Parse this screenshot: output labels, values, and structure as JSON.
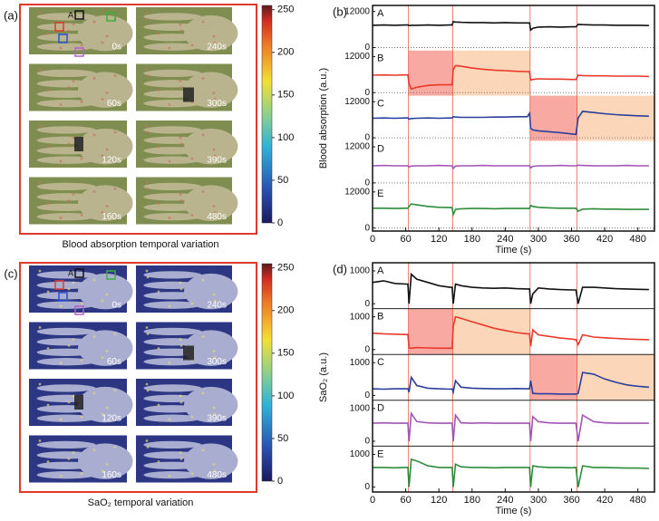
{
  "panels": [
    {
      "label": "(a)",
      "tiles": [
        "0s",
        "240s",
        "60s",
        "300s",
        "120s",
        "390s",
        "160s",
        "480s"
      ],
      "roi_label": "A",
      "caption": "Blood absorption temporal variation",
      "colorbar": {
        "lim": [
          0,
          255
        ],
        "ticks": [
          0,
          50,
          100,
          150,
          200,
          250
        ]
      }
    },
    {
      "label": "(c)",
      "tiles": [
        "0s",
        "240s",
        "60s",
        "300s",
        "120s",
        "390s",
        "160s",
        "480s"
      ],
      "roi_label": "A",
      "caption": "SaO₂ temporal variation",
      "colorbar": {
        "lim": [
          0,
          255
        ],
        "ticks": [
          0,
          50,
          100,
          150,
          200,
          250
        ]
      }
    }
  ],
  "chart_data": [
    {
      "type": "line",
      "panel_label": "(b)",
      "ylabel": "Blood absorption (a.u.)",
      "xlabel": "Time (s)",
      "xlim": [
        0,
        510
      ],
      "xticks": [
        0,
        60,
        120,
        180,
        240,
        300,
        360,
        420,
        480
      ],
      "ylim": [
        -1000,
        14000
      ],
      "yticks": [
        0,
        12000
      ],
      "zero_line": true,
      "row_dividers": false,
      "events": [
        65,
        145,
        285,
        370
      ],
      "shades": [
        {
          "series": 1,
          "from": 65,
          "to": 145,
          "color": "#f8aaa2"
        },
        {
          "series": 1,
          "from": 145,
          "to": 285,
          "color": "#fcd6b8"
        },
        {
          "series": 2,
          "from": 285,
          "to": 370,
          "color": "#f8aaa2"
        },
        {
          "series": 2,
          "from": 370,
          "to": 510,
          "color": "#fcd6b8"
        }
      ],
      "x": [
        0,
        20,
        40,
        60,
        64,
        66,
        70,
        80,
        100,
        120,
        140,
        144,
        146,
        150,
        160,
        180,
        200,
        220,
        240,
        260,
        280,
        284,
        286,
        290,
        300,
        320,
        340,
        360,
        368,
        372,
        380,
        400,
        420,
        440,
        460,
        480,
        500
      ],
      "series": [
        {
          "name": "A",
          "color": "#111111",
          "values": [
            7400,
            7500,
            7400,
            7500,
            7500,
            7300,
            7400,
            7400,
            7500,
            7400,
            7500,
            7500,
            8600,
            8500,
            8400,
            8300,
            8300,
            8200,
            8300,
            8200,
            8200,
            8200,
            5800,
            6400,
            6800,
            6900,
            6800,
            6900,
            6900,
            7700,
            7600,
            7500,
            7500,
            7400,
            7400,
            7400,
            7300
          ]
        },
        {
          "name": "B",
          "color": "#e8392a",
          "values": [
            5800,
            5900,
            5800,
            5900,
            5900,
            3000,
            1200,
            1800,
            2400,
            2600,
            2600,
            2600,
            7600,
            9000,
            8800,
            8200,
            7800,
            7500,
            7300,
            7100,
            7000,
            7000,
            4200,
            4400,
            4600,
            4500,
            4500,
            4400,
            4400,
            5800,
            5700,
            5600,
            5600,
            5500,
            5500,
            5500,
            5400
          ]
        },
        {
          "name": "C",
          "color": "#2a3f9b",
          "values": [
            6500,
            6600,
            6500,
            6600,
            6600,
            6200,
            6400,
            6500,
            6600,
            6500,
            6600,
            6600,
            7000,
            6900,
            6800,
            6800,
            6800,
            6900,
            6900,
            7000,
            7000,
            8200,
            3200,
            2600,
            2300,
            2000,
            1700,
            1300,
            1100,
            6600,
            8800,
            8400,
            8000,
            7700,
            7500,
            7300,
            7200
          ]
        },
        {
          "name": "D",
          "color": "#a254b6",
          "values": [
            5700,
            5800,
            5700,
            5700,
            5700,
            5300,
            5600,
            5700,
            5700,
            5800,
            5700,
            5700,
            4800,
            5600,
            5700,
            5700,
            5800,
            5700,
            5700,
            5700,
            5700,
            5700,
            5000,
            5500,
            5700,
            5700,
            5800,
            5700,
            5700,
            5900,
            5800,
            5700,
            5700,
            5700,
            5800,
            5700,
            5700
          ]
        },
        {
          "name": "E",
          "color": "#2e8b3a",
          "values": [
            6600,
            6600,
            6500,
            6600,
            6600,
            7200,
            8000,
            7700,
            7200,
            6900,
            6800,
            6800,
            4500,
            6200,
            6400,
            6500,
            6500,
            6400,
            6500,
            6500,
            6500,
            6500,
            7500,
            7200,
            6900,
            6700,
            6600,
            6600,
            6600,
            5600,
            6300,
            6400,
            6300,
            6300,
            6200,
            6200,
            6200
          ]
        }
      ]
    },
    {
      "type": "line",
      "panel_label": "(d)",
      "ylabel": "SaO₂ (a.u.)",
      "xlabel": "Time (s)",
      "xlim": [
        0,
        510
      ],
      "xticks": [
        0,
        60,
        120,
        180,
        240,
        300,
        360,
        420,
        480
      ],
      "ylim": [
        -150,
        1250
      ],
      "yticks": [
        0,
        1000
      ],
      "zero_line": false,
      "row_dividers": true,
      "events": [
        65,
        145,
        285,
        370
      ],
      "shades": [
        {
          "series": 1,
          "from": 65,
          "to": 145,
          "color": "#f8aaa2"
        },
        {
          "series": 1,
          "from": 145,
          "to": 285,
          "color": "#fcd6b8"
        },
        {
          "series": 2,
          "from": 285,
          "to": 370,
          "color": "#f8aaa2"
        },
        {
          "series": 2,
          "from": 370,
          "to": 510,
          "color": "#fcd6b8"
        }
      ],
      "x": [
        0,
        20,
        40,
        60,
        64,
        66,
        70,
        80,
        100,
        120,
        140,
        144,
        146,
        150,
        160,
        180,
        200,
        220,
        240,
        260,
        280,
        284,
        286,
        290,
        300,
        320,
        340,
        360,
        368,
        372,
        380,
        400,
        420,
        440,
        460,
        480,
        500
      ],
      "series": [
        {
          "name": "A",
          "color": "#111111",
          "values": [
            650,
            700,
            620,
            600,
            600,
            0,
            900,
            750,
            650,
            550,
            500,
            500,
            0,
            600,
            550,
            500,
            480,
            470,
            480,
            460,
            450,
            450,
            0,
            300,
            480,
            450,
            430,
            420,
            420,
            0,
            500,
            500,
            480,
            460,
            450,
            440,
            430
          ]
        },
        {
          "name": "B",
          "color": "#e8392a",
          "values": [
            500,
            480,
            470,
            460,
            460,
            50,
            40,
            60,
            50,
            40,
            40,
            40,
            700,
            1000,
            950,
            850,
            750,
            650,
            580,
            520,
            480,
            480,
            100,
            600,
            450,
            400,
            350,
            320,
            300,
            150,
            450,
            380,
            360,
            340,
            320,
            310,
            300
          ]
        },
        {
          "name": "C",
          "color": "#2a3f9b",
          "values": [
            200,
            190,
            200,
            200,
            200,
            100,
            550,
            300,
            220,
            200,
            190,
            200,
            100,
            450,
            250,
            220,
            210,
            200,
            200,
            210,
            200,
            200,
            450,
            60,
            50,
            50,
            40,
            40,
            40,
            60,
            700,
            650,
            500,
            400,
            320,
            280,
            250
          ]
        },
        {
          "name": "D",
          "color": "#a254b6",
          "values": [
            550,
            560,
            550,
            550,
            550,
            0,
            850,
            600,
            560,
            550,
            550,
            550,
            0,
            800,
            560,
            550,
            560,
            550,
            550,
            550,
            550,
            550,
            0,
            750,
            600,
            560,
            550,
            550,
            550,
            0,
            800,
            600,
            560,
            550,
            550,
            550,
            550
          ]
        },
        {
          "name": "E",
          "color": "#2e8b3a",
          "values": [
            600,
            600,
            590,
            600,
            600,
            0,
            850,
            800,
            650,
            600,
            600,
            600,
            0,
            700,
            620,
            600,
            600,
            590,
            600,
            600,
            600,
            600,
            0,
            650,
            620,
            600,
            600,
            590,
            600,
            0,
            650,
            600,
            600,
            590,
            580,
            580,
            570
          ]
        }
      ]
    }
  ]
}
